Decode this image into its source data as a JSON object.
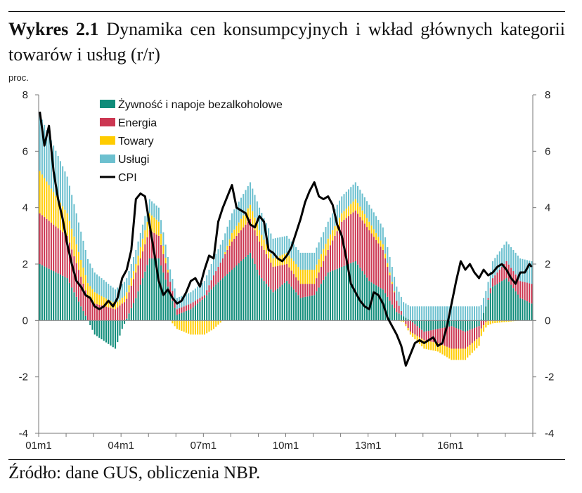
{
  "header": {
    "number": "Wykres 2.1",
    "title": "Dynamika cen konsumpcyjnych i wkład głównych kategorii towarów i usług (r/r)"
  },
  "footer": {
    "source": "Źródło: dane GUS, obliczenia NBP."
  },
  "colors": {
    "food": "#0f8c7a",
    "energy": "#cc3752",
    "goods": "#ffcc00",
    "services": "#6cc0cf",
    "cpi": "#000000"
  },
  "chart_data": {
    "type": "bar",
    "stacked": true,
    "title": "",
    "ylabel": "proc.",
    "ylim": [
      -4,
      8
    ],
    "yticks": [
      "8",
      "6",
      "4",
      "2",
      "0",
      "-2",
      "-4"
    ],
    "xticks": [
      "01m1",
      "04m1",
      "07m1",
      "10m1",
      "13m1",
      "16m1"
    ],
    "grid": false,
    "legend_position": "top-left",
    "x_period": {
      "start": "2001-01",
      "frequency": "monthly",
      "count": 216
    },
    "series": [
      {
        "name": "Żywność i napoje bezalkoholowe",
        "kind": "bar",
        "anchor_months": [
          0,
          12,
          24,
          33,
          36,
          42,
          48,
          52,
          60,
          66,
          72,
          76,
          84,
          92,
          96,
          102,
          108,
          114,
          120,
          126,
          132,
          138,
          144,
          150,
          156,
          162,
          168,
          174,
          180,
          186,
          192,
          198,
          204,
          210,
          215
        ],
        "anchor_values": [
          2.0,
          1.5,
          -0.5,
          -1.0,
          -0.3,
          0.8,
          2.2,
          2.2,
          0.2,
          0.4,
          0.8,
          1.2,
          1.8,
          2.4,
          1.6,
          1.0,
          1.4,
          0.8,
          0.9,
          1.7,
          1.9,
          2.1,
          1.4,
          1.1,
          0.3,
          0.0,
          -0.4,
          -0.3,
          -0.2,
          -0.4,
          -0.2,
          1.2,
          1.5,
          0.8,
          0.6
        ]
      },
      {
        "name": "Energia",
        "kind": "bar",
        "anchor_months": [
          0,
          12,
          24,
          33,
          36,
          42,
          48,
          52,
          60,
          66,
          72,
          76,
          84,
          92,
          96,
          102,
          108,
          114,
          120,
          126,
          132,
          138,
          144,
          150,
          156,
          162,
          168,
          174,
          180,
          186,
          192,
          198,
          204,
          210,
          215
        ],
        "anchor_values": [
          1.8,
          1.5,
          0.6,
          0.4,
          0.6,
          0.9,
          1.0,
          0.8,
          0.2,
          0.2,
          0.1,
          0.4,
          1.0,
          1.2,
          1.2,
          0.9,
          0.6,
          0.5,
          0.4,
          0.8,
          1.6,
          1.8,
          1.8,
          1.4,
          0.4,
          -0.4,
          -0.3,
          -0.5,
          -0.8,
          -0.6,
          -0.4,
          0.3,
          0.6,
          0.6,
          0.7
        ]
      },
      {
        "name": "Towary",
        "kind": "bar",
        "anchor_months": [
          0,
          12,
          24,
          33,
          36,
          42,
          48,
          52,
          60,
          66,
          72,
          76,
          84,
          92,
          96,
          102,
          108,
          114,
          120,
          126,
          132,
          138,
          144,
          150,
          156,
          162,
          168,
          174,
          180,
          186,
          192,
          198,
          204,
          210,
          215
        ],
        "anchor_values": [
          1.5,
          0.8,
          0.4,
          0.2,
          0.2,
          0.3,
          0.6,
          0.5,
          -0.3,
          -0.5,
          -0.5,
          -0.3,
          0.3,
          0.5,
          0.4,
          0.3,
          0.4,
          0.5,
          0.5,
          0.4,
          0.3,
          0.4,
          0.3,
          0.2,
          0.0,
          -0.1,
          -0.3,
          -0.3,
          -0.4,
          -0.4,
          -0.3,
          -0.1,
          -0.05,
          0.0,
          0.0
        ]
      },
      {
        "name": "Usługi",
        "kind": "bar",
        "anchor_months": [
          0,
          12,
          24,
          33,
          36,
          42,
          48,
          52,
          60,
          66,
          72,
          76,
          84,
          92,
          96,
          102,
          108,
          114,
          120,
          126,
          132,
          138,
          144,
          150,
          156,
          162,
          168,
          174,
          180,
          186,
          192,
          198,
          204,
          210,
          215
        ],
        "anchor_values": [
          2.0,
          1.3,
          0.7,
          0.5,
          0.5,
          0.5,
          0.5,
          0.5,
          0.4,
          0.4,
          0.5,
          0.6,
          0.7,
          0.8,
          0.8,
          0.7,
          0.6,
          0.6,
          0.6,
          0.6,
          0.6,
          0.6,
          0.6,
          0.6,
          0.5,
          0.5,
          0.5,
          0.5,
          0.5,
          0.5,
          0.5,
          0.6,
          0.7,
          0.8,
          0.8
        ]
      },
      {
        "name": "CPI",
        "kind": "line",
        "anchor_months": [
          0,
          2,
          4,
          6,
          8,
          10,
          12,
          14,
          16,
          18,
          20,
          22,
          24,
          26,
          28,
          30,
          32,
          34,
          36,
          38,
          40,
          42,
          44,
          46,
          48,
          50,
          52,
          54,
          56,
          58,
          60,
          62,
          64,
          66,
          68,
          70,
          72,
          74,
          76,
          78,
          80,
          82,
          84,
          86,
          88,
          90,
          92,
          94,
          96,
          98,
          100,
          102,
          104,
          106,
          108,
          110,
          112,
          114,
          116,
          118,
          120,
          122,
          124,
          126,
          128,
          130,
          132,
          134,
          136,
          138,
          140,
          142,
          144,
          146,
          148,
          150,
          152,
          154,
          156,
          158,
          160,
          162,
          164,
          166,
          168,
          170,
          172,
          174,
          176,
          178,
          180,
          182,
          184,
          186,
          188,
          190,
          192,
          194,
          196,
          198,
          200,
          202,
          204,
          206,
          208,
          210,
          212,
          214,
          215
        ],
        "anchor_values": [
          7.4,
          6.2,
          6.9,
          5.3,
          4.3,
          3.6,
          2.7,
          2.0,
          1.4,
          1.2,
          0.9,
          0.8,
          0.5,
          0.4,
          0.5,
          0.7,
          0.5,
          0.8,
          1.5,
          1.8,
          2.5,
          4.3,
          4.5,
          4.4,
          3.4,
          2.4,
          1.4,
          0.9,
          1.1,
          0.8,
          0.6,
          0.7,
          1.0,
          1.4,
          1.5,
          1.2,
          1.8,
          2.3,
          2.2,
          3.5,
          4.0,
          4.4,
          4.8,
          4.0,
          3.9,
          3.8,
          3.4,
          3.3,
          3.7,
          3.5,
          2.5,
          2.4,
          2.2,
          2.1,
          2.3,
          2.6,
          3.1,
          3.6,
          4.2,
          4.6,
          4.9,
          4.4,
          4.3,
          4.4,
          4.1,
          3.4,
          3.0,
          2.2,
          1.3,
          1.0,
          0.7,
          0.5,
          0.4,
          1.0,
          0.9,
          0.6,
          0.1,
          -0.2,
          -0.5,
          -0.9,
          -1.6,
          -1.2,
          -0.8,
          -0.7,
          -0.8,
          -0.7,
          -0.6,
          -0.9,
          -0.8,
          -0.2,
          0.6,
          1.4,
          2.1,
          1.8,
          2.0,
          1.7,
          1.5,
          1.8,
          1.6,
          1.7,
          1.9,
          2.0,
          1.8,
          1.5,
          1.3,
          1.7,
          1.7,
          2.0,
          1.9
        ]
      }
    ]
  }
}
